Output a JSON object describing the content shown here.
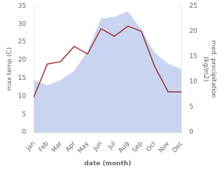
{
  "chart_data": {
    "type": "line",
    "categories": [
      "Jan",
      "Feb",
      "Mar",
      "Apr",
      "May",
      "Jun",
      "Jul",
      "Aug",
      "Sep",
      "Oct",
      "Nov",
      "Dec"
    ],
    "series": [
      {
        "type": "area",
        "color": "#c8d4f0",
        "values": [
          14.5,
          13.0,
          14.5,
          17.0,
          22.5,
          31.5,
          32.0,
          33.5,
          28.5,
          22.0,
          19.0,
          17.5
        ]
      },
      {
        "type": "line",
        "color": "#a03030",
        "axis": "y2",
        "values": [
          7.0,
          13.5,
          14.0,
          17.0,
          15.5,
          20.5,
          19.0,
          21.0,
          20.0,
          13.0,
          8.0,
          8.0
        ]
      }
    ],
    "xlabel": "date (month)",
    "ylabel": "max temp (C)",
    "y2label": "med. precipitation\n(kg/m2)",
    "ylim": [
      0,
      35
    ],
    "yticks": [
      0,
      5,
      10,
      15,
      20,
      25,
      30,
      35
    ],
    "y2lim": [
      0,
      25
    ],
    "y2ticks": [
      0,
      5,
      10,
      15,
      20,
      25
    ],
    "grid": false
  }
}
